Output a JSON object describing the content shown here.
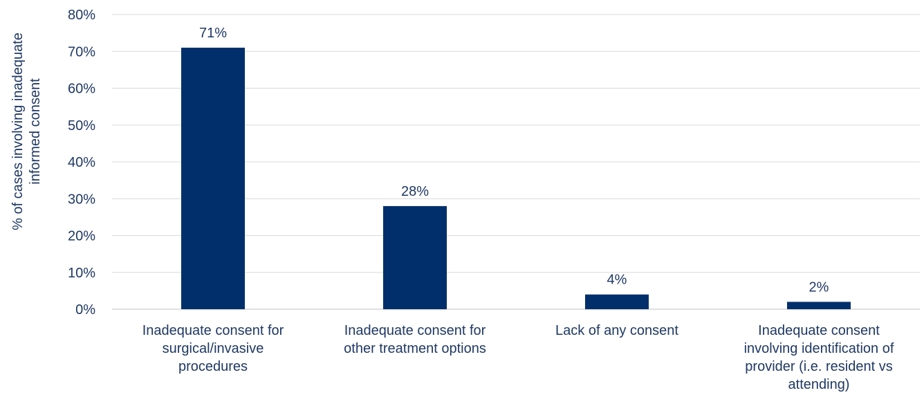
{
  "chart_data": {
    "type": "bar",
    "title": "",
    "xlabel": "",
    "ylabel_lines": [
      "% of cases involving inadequate",
      "informed consent"
    ],
    "categories": [
      [
        "Inadequate consent for",
        "surgical/invasive",
        "procedures"
      ],
      [
        "Inadequate consent for",
        "other treatment options"
      ],
      [
        "Lack of any consent"
      ],
      [
        "Inadequate consent",
        "involving identification of",
        "provider (i.e. resident vs",
        "attending)"
      ]
    ],
    "values": [
      71,
      28,
      4,
      2
    ],
    "data_labels": [
      "71%",
      "28%",
      "4%",
      "2%"
    ],
    "ylim": [
      0,
      80
    ],
    "yticks": [
      0,
      10,
      20,
      30,
      40,
      50,
      60,
      70,
      80
    ],
    "ytick_labels": [
      "0%",
      "10%",
      "20%",
      "30%",
      "40%",
      "50%",
      "60%",
      "70%",
      "80%"
    ],
    "grid": true,
    "legend": "none",
    "colors": {
      "bar": "#002f6c",
      "text": "#1f3864",
      "grid": "#d9d9d9",
      "axis": "#bfbfbf"
    }
  }
}
